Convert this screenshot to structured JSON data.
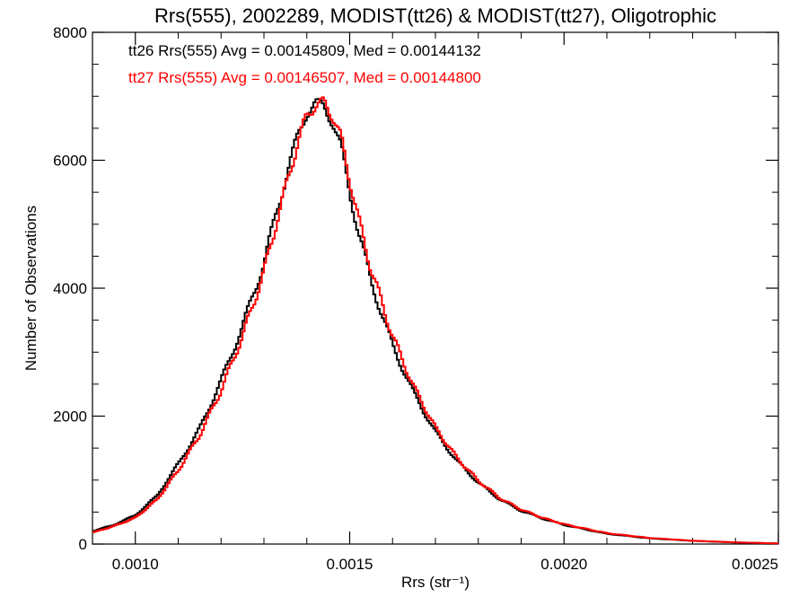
{
  "chart_data": {
    "type": "line",
    "title": "Rrs(555), 2002289, MODIST(tt26) & MODIST(tt27), Oligotrophic",
    "xlabel": "Rrs (str⁻¹)",
    "ylabel": "Number of Observations",
    "xlim": [
      0.0009,
      0.0025
    ],
    "ylim": [
      0,
      8000
    ],
    "x_ticks": [
      "0.0010",
      "0.0015",
      "0.0020",
      "0.0025"
    ],
    "x_tick_values": [
      0.001,
      0.0015,
      0.002,
      0.0025
    ],
    "y_ticks": [
      "0",
      "2000",
      "4000",
      "6000",
      "8000"
    ],
    "y_tick_values": [
      0,
      2000,
      4000,
      6000,
      8000
    ],
    "grid": false,
    "step": true,
    "annotations": [
      {
        "text": "tt26 Rrs(555) Avg = 0.00145809, Med = 0.00144132",
        "color": "#000000"
      },
      {
        "text": "tt27 Rrs(555) Avg = 0.00146507, Med = 0.00144800",
        "color": "#ff0000"
      }
    ],
    "series": [
      {
        "color": "#000000",
        "x": [
          0.0009,
          0.00095,
          0.001,
          0.00105,
          0.0011,
          0.00115,
          0.0012,
          0.00125,
          0.0013,
          0.00133,
          0.00136,
          0.00138,
          0.0014,
          0.00142,
          0.00144,
          0.00146,
          0.00148,
          0.0015,
          0.00152,
          0.00155,
          0.0016,
          0.00165,
          0.0017,
          0.00175,
          0.0018,
          0.00185,
          0.0019,
          0.00195,
          0.002,
          0.00205,
          0.0021,
          0.0022,
          0.0023,
          0.0024,
          0.0025
        ],
        "y": [
          200,
          300,
          450,
          750,
          1250,
          1800,
          2550,
          3400,
          4400,
          5200,
          5950,
          6400,
          6750,
          6880,
          6850,
          6600,
          6200,
          5500,
          4900,
          4100,
          3100,
          2350,
          1750,
          1300,
          960,
          700,
          520,
          400,
          300,
          230,
          160,
          90,
          50,
          25,
          10
        ]
      },
      {
        "color": "#ff0000",
        "x": [
          0.0009,
          0.00095,
          0.001,
          0.00105,
          0.0011,
          0.00115,
          0.0012,
          0.00125,
          0.0013,
          0.00133,
          0.00136,
          0.00138,
          0.0014,
          0.00142,
          0.00144,
          0.00146,
          0.00148,
          0.0015,
          0.00152,
          0.00155,
          0.0016,
          0.00165,
          0.0017,
          0.00175,
          0.0018,
          0.00185,
          0.0019,
          0.00195,
          0.002,
          0.00205,
          0.0021,
          0.0022,
          0.0023,
          0.0024,
          0.0025
        ],
        "y": [
          180,
          280,
          410,
          690,
          1150,
          1700,
          2400,
          3250,
          4250,
          5050,
          5800,
          6300,
          6700,
          6860,
          6900,
          6700,
          6350,
          5700,
          5100,
          4300,
          3250,
          2450,
          1820,
          1350,
          990,
          720,
          540,
          410,
          310,
          240,
          170,
          95,
          52,
          26,
          10
        ]
      }
    ]
  }
}
